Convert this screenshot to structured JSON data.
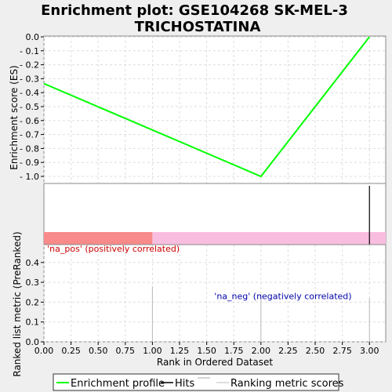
{
  "chart_data": {
    "type": "line",
    "title_lines": [
      "Enrichment plot: GSE104268 SK-MEL-3",
      "TRICHOSTATINA"
    ],
    "x_axis": {
      "label": "Rank in Ordered Dataset",
      "range": [
        0,
        3.15
      ],
      "ticks": [
        "0.00",
        "0.25",
        "0.50",
        "0.75",
        "1.00",
        "1.25",
        "1.50",
        "1.75",
        "2.00",
        "2.25",
        "2.50",
        "2.75",
        "3.00"
      ]
    },
    "es_panel": {
      "ylabel": "Enrichment score (ES)",
      "ylim": [
        -1.05,
        0.0
      ],
      "yticks": [
        "0.0",
        "- 0.1",
        "- 0.2",
        "- 0.3",
        "- 0.4",
        "- 0.5",
        "- 0.6",
        "- 0.7",
        "- 0.8",
        "- 0.9",
        "- 1.0"
      ],
      "series": [
        {
          "name": "Enrichment profile",
          "color": "#00ff00",
          "x": [
            0,
            2,
            3
          ],
          "y": [
            -0.335,
            -1.0,
            0.0
          ]
        }
      ],
      "grid": true
    },
    "hits": {
      "positions": [
        3
      ]
    },
    "correlation_bar": {
      "split_rank": 1,
      "left_color": "#f88a8a",
      "right_color": "#f9bde0"
    },
    "metric_panel": {
      "ylabel": "Ranked list metric (PreRanked)",
      "ylim": [
        0,
        0.49
      ],
      "yticks": [
        "0.0",
        "0.1",
        "0.2",
        "0.3",
        "0.4"
      ],
      "bars": [
        {
          "x": 1,
          "value": 0.28
        },
        {
          "x": 2,
          "value": 0.24
        },
        {
          "x": 3,
          "value": 0.22
        }
      ],
      "annotations": [
        {
          "text": "'na_pos' (positively correlated)",
          "color": "#cc0000",
          "x": 0.03,
          "y": 0.455
        },
        {
          "text": "'na_neg' (negatively correlated)",
          "color": "#0000aa",
          "x": 1.57,
          "y": 0.215
        }
      ],
      "grid": true
    },
    "legend": {
      "placement": "bottom",
      "items": [
        {
          "label": "Enrichment profile",
          "color": "#00ff00"
        },
        {
          "label": "Hits",
          "color": "#000000"
        },
        {
          "label": "",
          "color": "#aaaaaa"
        },
        {
          "label": "Ranking metric scores",
          "color": "#bbbbbb"
        }
      ]
    }
  }
}
